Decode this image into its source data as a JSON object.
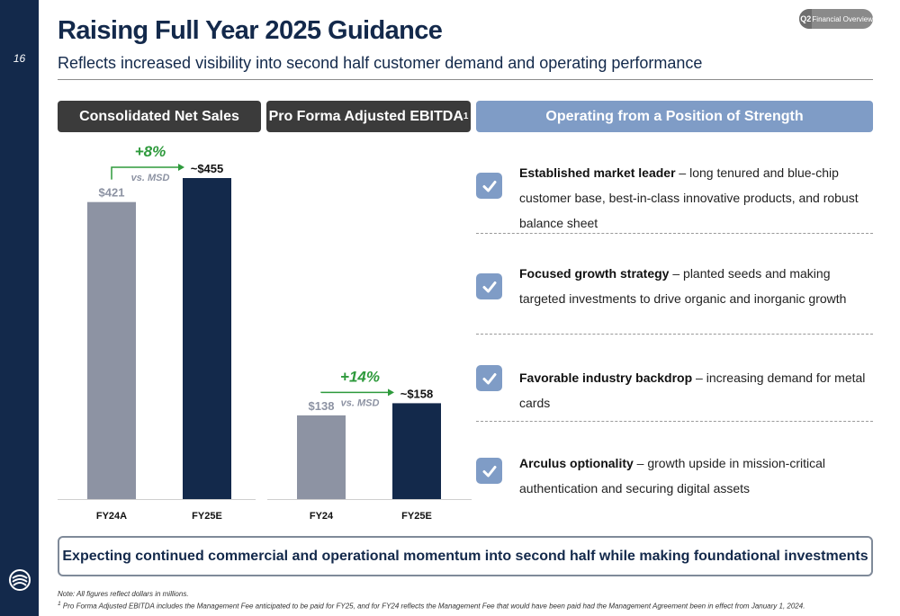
{
  "page_number": "16",
  "title": "Raising Full Year 2025 Guidance",
  "subtitle": "Reflects increased visibility into second half customer demand and operating performance",
  "badge": {
    "section": "Q2",
    "label": "Financial Overview"
  },
  "headers": {
    "sales": "Consolidated Net Sales",
    "ebitda": "Pro Forma Adjusted EBITDA",
    "ebitda_footnote": "1",
    "strength": "Operating from a Position of Strength"
  },
  "chart_data": [
    {
      "type": "bar",
      "title": "Consolidated Net Sales",
      "categories": [
        "FY24A",
        "FY25E"
      ],
      "values": [
        421,
        455
      ],
      "data_labels": [
        "$421",
        "~$455"
      ],
      "bar_colors": [
        "#8d93a3",
        "#13294b"
      ],
      "growth_label": "+8%",
      "growth_note": "vs. MSD",
      "units": "$M"
    },
    {
      "type": "bar",
      "title": "Pro Forma Adjusted EBITDA",
      "categories": [
        "FY24",
        "FY25E"
      ],
      "values": [
        138,
        158
      ],
      "data_labels": [
        "$138",
        "~$158"
      ],
      "bar_colors": [
        "#8d93a3",
        "#13294b"
      ],
      "growth_label": "+14%",
      "growth_note": "vs. MSD",
      "units": "$M"
    }
  ],
  "strengths": [
    {
      "bold": "Established market leader",
      "text": " – long tenured and blue-chip customer base, best-in-class innovative products, and robust balance sheet"
    },
    {
      "bold": "Focused growth strategy",
      "text": " – planted seeds and making targeted investments to drive organic and inorganic growth"
    },
    {
      "bold": "Favorable industry backdrop",
      "text": " – increasing demand for metal cards"
    },
    {
      "bold": "Arculus optionality",
      "text": " – growth upside in mission-critical authentication and securing digital assets"
    }
  ],
  "banner": "Expecting continued commercial and operational momentum into second half while making foundational investments",
  "notes": {
    "note1": "Note: All figures reflect dollars in millions.",
    "footnote_marker": "1",
    "footnote": " Pro Forma Adjusted EBITDA includes the Management Fee anticipated to be paid for FY25, and for FY24 reflects the Management Fee that would have been paid had the Management Agreement been in effect from January 1, 2024."
  },
  "colors": {
    "navy": "#13294b",
    "accent_blue": "#7f9cc6",
    "growth_green": "#2e9a3c",
    "bar_gray": "#8d93a3",
    "header_dark": "#3b3b3b"
  }
}
